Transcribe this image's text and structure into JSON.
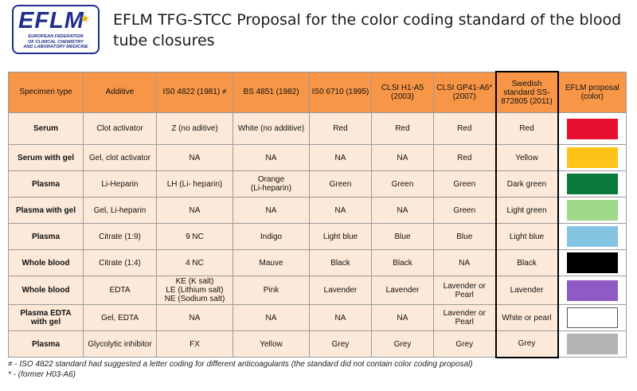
{
  "logo": {
    "word": "EFLM",
    "lines": [
      "European Federation",
      "of Clinical Chemistry",
      "and Laboratory Medicine"
    ]
  },
  "title": "EFLM TFG-STCC Proposal for the color coding standard of the blood tube closures",
  "table": {
    "headers": [
      "Specimen type",
      "Additive",
      "IS0 4822 (1981) ≠",
      "BS 4851 (1982)",
      "IS0 6710 (1995)",
      "CLSI H1-A5 (2003)",
      "CLSI GP41-A6* (2007)",
      "Swedish standard SS-872805 (2011)",
      "EFLM proposal (color)"
    ],
    "rows": [
      {
        "specimen": "Serum",
        "additive": "Clot activator",
        "iso4822": "Z (no aditive)",
        "bs4851": "White (no additive)",
        "iso6710": "Red",
        "clsi_h1": "Red",
        "clsi_gp41": "Red",
        "swedish": "Red",
        "color": "#e8102e"
      },
      {
        "specimen": "Serum with gel",
        "additive": "Gel, clot activator",
        "iso4822": "NA",
        "bs4851": "NA",
        "iso6710": "NA",
        "clsi_h1": "NA",
        "clsi_gp41": "Red",
        "swedish": "Yellow",
        "color": "#fcc419"
      },
      {
        "specimen": "Plasma",
        "additive": "Li-Heparin",
        "iso4822": "LH (Li- heparin)",
        "bs4851": "Orange\n(Li-heparin)",
        "iso6710": "Green",
        "clsi_h1": "Green",
        "clsi_gp41": "Green",
        "swedish": "Dark green",
        "color": "#0a7a3c"
      },
      {
        "specimen": "Plasma with gel",
        "additive": "Gel, Li-heparin",
        "iso4822": "NA",
        "bs4851": "NA",
        "iso6710": "NA",
        "clsi_h1": "NA",
        "clsi_gp41": "Green",
        "swedish": "Light green",
        "color": "#9ed98a"
      },
      {
        "specimen": "Plasma",
        "additive": "Citrate (1:9)",
        "iso4822": "9 NC",
        "bs4851": "Indigo",
        "iso6710": "Light blue",
        "clsi_h1": "Blue",
        "clsi_gp41": "Blue",
        "swedish": "Light blue",
        "color": "#84c4e2"
      },
      {
        "specimen": "Whole blood",
        "additive": "Citrate (1:4)",
        "iso4822": "4 NC",
        "bs4851": "Mauve",
        "iso6710": "Black",
        "clsi_h1": "Black",
        "clsi_gp41": "NA",
        "swedish": "Black",
        "color": "#000000"
      },
      {
        "specimen": "Whole blood",
        "additive": "EDTA",
        "iso4822": "KE (K salt)\nLE (Lithium salt)\nNE (Sodium salt)",
        "bs4851": "Pink",
        "iso6710": "Lavender",
        "clsi_h1": "Lavender",
        "clsi_gp41": "Lavender or\nPearl",
        "swedish": "Lavender",
        "color": "#8e5bc4"
      },
      {
        "specimen": "Plasma EDTA\nwith gel",
        "additive": "Gel, EDTA",
        "iso4822": "NA",
        "bs4851": "NA",
        "iso6710": "NA",
        "clsi_h1": "NA",
        "clsi_gp41": "Lavender or\nPearl",
        "swedish": "White or pearl",
        "color": "#ffffff"
      },
      {
        "specimen": "Plasma",
        "additive": "Glycolytic inhibitor",
        "iso4822": "FX",
        "bs4851": "Yellow",
        "iso6710": "Grey",
        "clsi_h1": "Grey",
        "clsi_gp41": "Grey",
        "swedish": "Grey",
        "color": "#b3b3b3"
      }
    ]
  },
  "footnotes": [
    "≠ - ISO 4822 standard had suggested a letter coding for different anticoagulants (the standard did not contain color coding proposal)",
    "* - (former H03-A6)"
  ]
}
